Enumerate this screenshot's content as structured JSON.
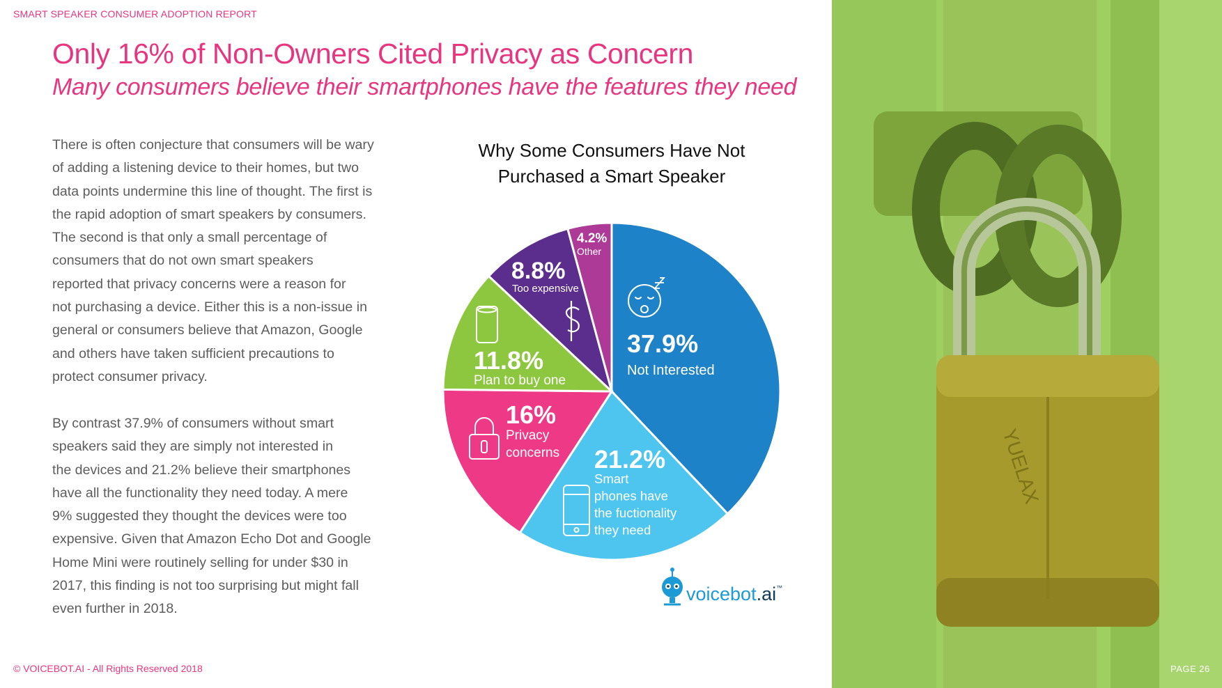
{
  "header": {
    "report_label": "SMART SPEAKER CONSUMER ADOPTION REPORT",
    "headline": "Only 16% of Non-Owners Cited Privacy as Concern",
    "subheadline": "Many consumers believe their smartphones have the features they need"
  },
  "body": {
    "lines_p1": [
      "There is often conjecture that consumers will be wary",
      "of adding a listening device to their homes, but two",
      "data points undermine this line of thought. The first is",
      "the rapid adoption of smart speakers by consumers.",
      "The second is that only a small percentage of",
      "consumers that do not own smart speakers",
      "reported that privacy concerns were a reason for",
      "not purchasing a device. Either this is a non-issue in",
      "general or consumers believe that Amazon, Google",
      "and others have taken sufficient precautions to",
      "protect consumer privacy."
    ],
    "lines_p2": [
      "By contrast 37.9% of consumers without smart",
      "speakers said they are simply not interested in",
      "the devices and 21.2% believe their smartphones",
      "have all the functionality they need today. A mere",
      "9% suggested they thought the devices were too",
      "expensive. Given that Amazon Echo Dot and Google",
      "Home Mini were routinely selling for under $30 in",
      "2017, this finding is not too surprising but might fall",
      "even further in 2018."
    ]
  },
  "chart_data": {
    "type": "pie",
    "title_lines": [
      "Why Some Consumers Have Not",
      "Purchased a Smart Speaker"
    ],
    "start": "12 o'clock, clockwise",
    "slices": [
      {
        "value": 37.9,
        "value_label": "37.9%",
        "label_lines": [
          "Not Interested"
        ],
        "color": "#1e82c8",
        "icon": "sleepy-face-icon"
      },
      {
        "value": 21.2,
        "value_label": "21.2%",
        "label_lines": [
          "Smart",
          "phones have",
          "the fuctionality",
          "they need"
        ],
        "color": "#4ec5ee",
        "icon": "smartphone-icon"
      },
      {
        "value": 16,
        "value_label": "16%",
        "label_lines": [
          "Privacy",
          "concerns"
        ],
        "color": "#ee3a86",
        "icon": "padlock-icon"
      },
      {
        "value": 11.8,
        "value_label": "11.8%",
        "label_lines": [
          "Plan to buy one"
        ],
        "color": "#8dc63f",
        "icon": "smart-speaker-icon"
      },
      {
        "value": 8.8,
        "value_label": "8.8%",
        "label_lines": [
          "Too expensive"
        ],
        "color": "#5b2e8e",
        "icon": "dollar-icon"
      },
      {
        "value": 4.2,
        "value_label": "4.2%",
        "label_lines": [
          "Other"
        ],
        "color": "#ad3a96",
        "icon": ""
      }
    ]
  },
  "logo": {
    "text_main": "voicebot",
    "text_suffix": ".ai",
    "tm": "™",
    "icon": "robot-icon",
    "color": "#1b9ad6"
  },
  "footer": {
    "copyright": "© VOICEBOT.AI - All Rights Reserved 2018",
    "page": "PAGE 26"
  },
  "photo": {
    "subject": "padlock-photo",
    "tint": "#9ccc5a"
  }
}
